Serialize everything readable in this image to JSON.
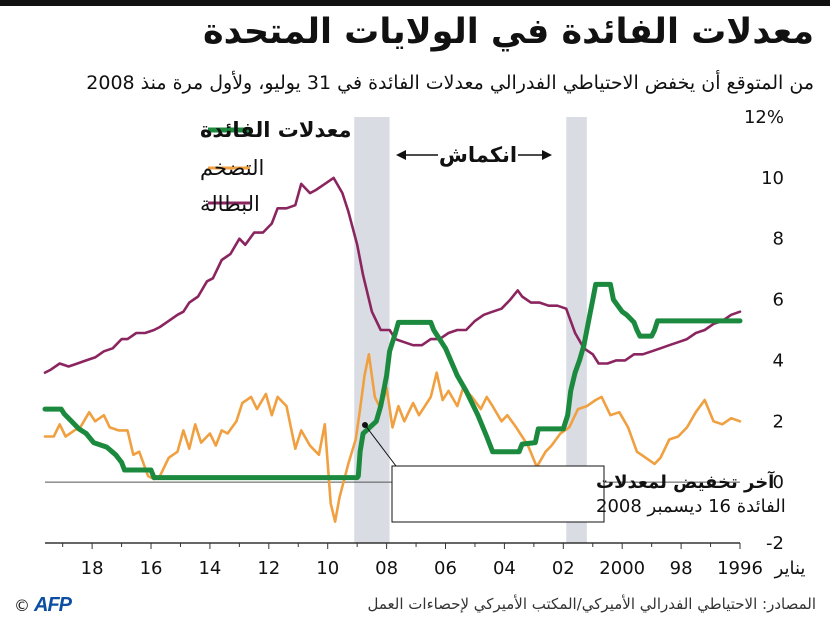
{
  "title": "معدلات الفائدة في الولايات المتحدة",
  "subtitle": "من المتوقع أن يخفض الاحتياطي الفدرالي معدلات الفائدة في 31 يوليو، ولأول مرة منذ 2008",
  "source": "المصادر: الاحتياطي الفدرالي الأميركي/المكتب الأميركي لإحصاءات العمل",
  "logo": {
    "copyright": "©",
    "brand": "AFP"
  },
  "colors": {
    "rates": "#1c8a3e",
    "inflation": "#f0a040",
    "unemployment": "#8b2560",
    "recession": "#d9dde3",
    "axis": "#333333"
  },
  "recession_label": "انكماش",
  "annotation": {
    "line1": "آخر تخفيض لمعدلات",
    "line2": "الفائدة 16 ديسمبر 2008"
  },
  "chart_data": {
    "type": "line",
    "x_axis": {
      "direction": "reversed",
      "range": [
        1996.0,
        2019.6
      ],
      "ticks": [
        1996,
        1998,
        2000,
        2002,
        2004,
        2006,
        2008,
        2010,
        2012,
        2014,
        2016,
        2018
      ],
      "tick_labels": [
        "1996",
        "98",
        "2000",
        "02",
        "04",
        "06",
        "08",
        "10",
        "12",
        "14",
        "16",
        "18"
      ],
      "start_label": "يناير"
    },
    "y_axis": {
      "range": [
        -2,
        12
      ],
      "ticks": [
        -2,
        0,
        2,
        4,
        6,
        8,
        10,
        12
      ],
      "tick_labels": [
        "-2",
        "0",
        "2",
        "4",
        "6",
        "8",
        "10",
        "12%"
      ],
      "position": "right",
      "grid": "zero-line only"
    },
    "recessions": [
      {
        "start": 2001.2,
        "end": 2001.9
      },
      {
        "start": 2007.9,
        "end": 2009.1
      }
    ],
    "series": [
      {
        "name": "معدلات الفائدة",
        "color": "#1c8a3e",
        "bold": true,
        "points": [
          [
            1996.0,
            5.3
          ],
          [
            1998.8,
            5.3
          ],
          [
            1998.9,
            5.0
          ],
          [
            1999.0,
            4.8
          ],
          [
            1999.4,
            4.8
          ],
          [
            1999.5,
            5.0
          ],
          [
            1999.6,
            5.25
          ],
          [
            1999.85,
            5.5
          ],
          [
            2000.0,
            5.6
          ],
          [
            2000.3,
            6.0
          ],
          [
            2000.4,
            6.5
          ],
          [
            2000.9,
            6.5
          ],
          [
            2001.0,
            6.0
          ],
          [
            2001.1,
            5.5
          ],
          [
            2001.3,
            4.5
          ],
          [
            2001.45,
            4.0
          ],
          [
            2001.6,
            3.6
          ],
          [
            2001.75,
            3.0
          ],
          [
            2001.85,
            2.2
          ],
          [
            2002.0,
            1.75
          ],
          [
            2002.85,
            1.75
          ],
          [
            2002.95,
            1.3
          ],
          [
            2003.4,
            1.25
          ],
          [
            2003.5,
            1.0
          ],
          [
            2004.4,
            1.0
          ],
          [
            2004.6,
            1.5
          ],
          [
            2004.9,
            2.2
          ],
          [
            2005.3,
            3.0
          ],
          [
            2005.6,
            3.5
          ],
          [
            2006.0,
            4.4
          ],
          [
            2006.4,
            5.0
          ],
          [
            2006.5,
            5.25
          ],
          [
            2007.6,
            5.25
          ],
          [
            2007.7,
            4.9
          ],
          [
            2007.9,
            4.3
          ],
          [
            2008.0,
            3.5
          ],
          [
            2008.2,
            2.5
          ],
          [
            2008.35,
            2.0
          ],
          [
            2008.8,
            1.6
          ],
          [
            2008.9,
            1.0
          ],
          [
            2008.96,
            0.2
          ],
          [
            2009.0,
            0.15
          ],
          [
            2015.9,
            0.15
          ],
          [
            2016.0,
            0.4
          ],
          [
            2016.9,
            0.4
          ],
          [
            2017.0,
            0.65
          ],
          [
            2017.2,
            0.9
          ],
          [
            2017.5,
            1.15
          ],
          [
            2017.95,
            1.3
          ],
          [
            2018.2,
            1.6
          ],
          [
            2018.45,
            1.75
          ],
          [
            2018.7,
            2.0
          ],
          [
            2018.95,
            2.25
          ],
          [
            2019.05,
            2.4
          ],
          [
            2019.6,
            2.4
          ]
        ]
      },
      {
        "name": "التضخم",
        "color": "#f0a040",
        "bold": false,
        "points": [
          [
            1996.0,
            2.0
          ],
          [
            1996.3,
            2.1
          ],
          [
            1996.6,
            1.9
          ],
          [
            1996.9,
            2.0
          ],
          [
            1997.2,
            2.7
          ],
          [
            1997.5,
            2.3
          ],
          [
            1997.8,
            1.8
          ],
          [
            1998.1,
            1.5
          ],
          [
            1998.4,
            1.4
          ],
          [
            1998.7,
            0.8
          ],
          [
            1998.9,
            0.6
          ],
          [
            1999.2,
            0.8
          ],
          [
            1999.5,
            1.0
          ],
          [
            1999.8,
            1.8
          ],
          [
            2000.1,
            2.3
          ],
          [
            2000.4,
            2.2
          ],
          [
            2000.7,
            2.8
          ],
          [
            2000.9,
            2.7
          ],
          [
            2001.2,
            2.5
          ],
          [
            2001.5,
            2.4
          ],
          [
            2001.8,
            1.8
          ],
          [
            2002.1,
            1.6
          ],
          [
            2002.4,
            1.2
          ],
          [
            2002.6,
            1.0
          ],
          [
            2002.9,
            0.5
          ],
          [
            2003.2,
            1.2
          ],
          [
            2003.4,
            1.5
          ],
          [
            2003.6,
            1.8
          ],
          [
            2003.9,
            2.2
          ],
          [
            2004.1,
            2.0
          ],
          [
            2004.4,
            2.5
          ],
          [
            2004.6,
            2.8
          ],
          [
            2004.8,
            2.4
          ],
          [
            2005.1,
            2.8
          ],
          [
            2005.4,
            3.1
          ],
          [
            2005.6,
            2.5
          ],
          [
            2005.9,
            3.0
          ],
          [
            2006.1,
            2.7
          ],
          [
            2006.3,
            3.6
          ],
          [
            2006.5,
            2.8
          ],
          [
            2006.7,
            2.5
          ],
          [
            2006.9,
            2.2
          ],
          [
            2007.1,
            2.6
          ],
          [
            2007.4,
            2.0
          ],
          [
            2007.6,
            2.5
          ],
          [
            2007.8,
            1.8
          ],
          [
            2008.0,
            3.1
          ],
          [
            2008.2,
            2.4
          ],
          [
            2008.4,
            2.8
          ],
          [
            2008.6,
            4.2
          ],
          [
            2008.75,
            3.5
          ],
          [
            2008.9,
            2.4
          ],
          [
            2009.05,
            1.4
          ],
          [
            2009.3,
            0.6
          ],
          [
            2009.6,
            -0.5
          ],
          [
            2009.75,
            -1.3
          ],
          [
            2009.9,
            -0.7
          ],
          [
            2010.1,
            1.9
          ],
          [
            2010.3,
            0.9
          ],
          [
            2010.6,
            1.2
          ],
          [
            2010.9,
            1.7
          ],
          [
            2011.1,
            1.1
          ],
          [
            2011.4,
            2.5
          ],
          [
            2011.7,
            2.8
          ],
          [
            2011.9,
            2.2
          ],
          [
            2012.1,
            2.9
          ],
          [
            2012.4,
            2.4
          ],
          [
            2012.6,
            2.8
          ],
          [
            2012.9,
            2.6
          ],
          [
            2013.1,
            2.0
          ],
          [
            2013.4,
            1.6
          ],
          [
            2013.6,
            1.7
          ],
          [
            2013.8,
            1.2
          ],
          [
            2014.0,
            1.6
          ],
          [
            2014.3,
            1.3
          ],
          [
            2014.5,
            1.9
          ],
          [
            2014.7,
            1.1
          ],
          [
            2014.9,
            1.7
          ],
          [
            2015.1,
            1.0
          ],
          [
            2015.4,
            0.8
          ],
          [
            2015.7,
            0.2
          ],
          [
            2015.9,
            0.1
          ],
          [
            2016.1,
            0.2
          ],
          [
            2016.4,
            1.0
          ],
          [
            2016.6,
            0.9
          ],
          [
            2016.8,
            1.7
          ],
          [
            2016.9,
            1.7
          ],
          [
            2017.1,
            1.7
          ],
          [
            2017.4,
            1.8
          ],
          [
            2017.6,
            2.2
          ],
          [
            2017.9,
            2.0
          ],
          [
            2018.1,
            2.3
          ],
          [
            2018.4,
            1.8
          ],
          [
            2018.6,
            1.7
          ],
          [
            2018.9,
            1.5
          ],
          [
            2019.1,
            1.9
          ],
          [
            2019.3,
            1.5
          ],
          [
            2019.6,
            1.5
          ]
        ]
      },
      {
        "name": "البطالة",
        "color": "#8b2560",
        "bold": false,
        "points": [
          [
            1996.0,
            5.6
          ],
          [
            1996.3,
            5.5
          ],
          [
            1996.6,
            5.3
          ],
          [
            1996.9,
            5.2
          ],
          [
            1997.2,
            5.0
          ],
          [
            1997.5,
            4.9
          ],
          [
            1997.8,
            4.7
          ],
          [
            1998.1,
            4.6
          ],
          [
            1998.4,
            4.5
          ],
          [
            1998.7,
            4.4
          ],
          [
            1999.0,
            4.3
          ],
          [
            1999.3,
            4.2
          ],
          [
            1999.6,
            4.2
          ],
          [
            1999.9,
            4.0
          ],
          [
            2000.2,
            4.0
          ],
          [
            2000.5,
            3.9
          ],
          [
            2000.8,
            3.9
          ],
          [
            2001.0,
            4.2
          ],
          [
            2001.3,
            4.4
          ],
          [
            2001.6,
            4.9
          ],
          [
            2001.9,
            5.7
          ],
          [
            2002.2,
            5.8
          ],
          [
            2002.5,
            5.8
          ],
          [
            2002.8,
            5.9
          ],
          [
            2003.1,
            5.9
          ],
          [
            2003.4,
            6.1
          ],
          [
            2003.55,
            6.3
          ],
          [
            2003.8,
            6.0
          ],
          [
            2004.1,
            5.7
          ],
          [
            2004.4,
            5.6
          ],
          [
            2004.7,
            5.5
          ],
          [
            2005.0,
            5.3
          ],
          [
            2005.3,
            5.0
          ],
          [
            2005.6,
            5.0
          ],
          [
            2005.9,
            4.9
          ],
          [
            2006.2,
            4.7
          ],
          [
            2006.5,
            4.7
          ],
          [
            2006.8,
            4.5
          ],
          [
            2007.1,
            4.5
          ],
          [
            2007.4,
            4.6
          ],
          [
            2007.7,
            4.7
          ],
          [
            2007.9,
            5.0
          ],
          [
            2008.2,
            5.0
          ],
          [
            2008.5,
            5.6
          ],
          [
            2008.8,
            6.8
          ],
          [
            2009.0,
            7.8
          ],
          [
            2009.3,
            8.9
          ],
          [
            2009.5,
            9.5
          ],
          [
            2009.8,
            10.0
          ],
          [
            2010.1,
            9.8
          ],
          [
            2010.4,
            9.6
          ],
          [
            2010.6,
            9.5
          ],
          [
            2010.9,
            9.8
          ],
          [
            2011.1,
            9.1
          ],
          [
            2011.4,
            9.0
          ],
          [
            2011.7,
            9.0
          ],
          [
            2011.9,
            8.5
          ],
          [
            2012.2,
            8.2
          ],
          [
            2012.5,
            8.2
          ],
          [
            2012.8,
            7.8
          ],
          [
            2013.0,
            8.0
          ],
          [
            2013.3,
            7.5
          ],
          [
            2013.6,
            7.3
          ],
          [
            2013.9,
            6.7
          ],
          [
            2014.1,
            6.6
          ],
          [
            2014.4,
            6.1
          ],
          [
            2014.7,
            5.9
          ],
          [
            2014.9,
            5.6
          ],
          [
            2015.1,
            5.5
          ],
          [
            2015.4,
            5.3
          ],
          [
            2015.7,
            5.1
          ],
          [
            2015.9,
            5.0
          ],
          [
            2016.2,
            4.9
          ],
          [
            2016.5,
            4.9
          ],
          [
            2016.8,
            4.7
          ],
          [
            2017.0,
            4.7
          ],
          [
            2017.3,
            4.4
          ],
          [
            2017.6,
            4.3
          ],
          [
            2017.9,
            4.1
          ],
          [
            2018.2,
            4.0
          ],
          [
            2018.5,
            3.9
          ],
          [
            2018.8,
            3.8
          ],
          [
            2019.1,
            3.9
          ],
          [
            2019.4,
            3.7
          ],
          [
            2019.6,
            3.6
          ]
        ]
      }
    ]
  }
}
